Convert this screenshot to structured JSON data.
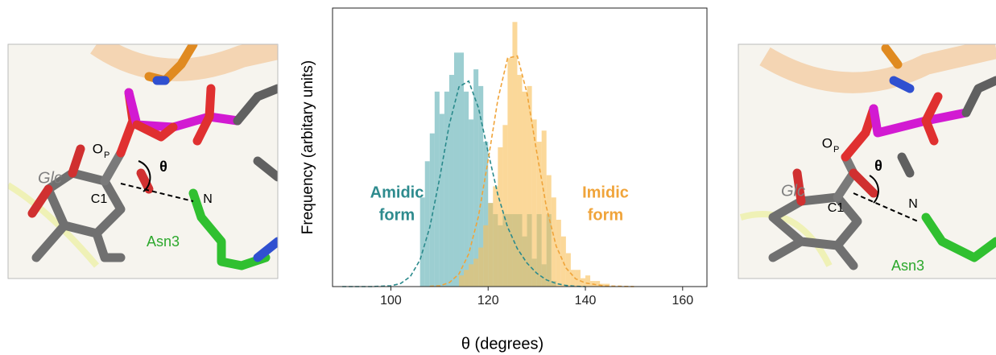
{
  "left_panel": {
    "glc": "Glc",
    "c1": "C1",
    "o": "O",
    "p_sub": "P",
    "theta": "θ",
    "n": "N",
    "residue": "Asn3"
  },
  "right_panel": {
    "glc": "Glc",
    "c1": "C1",
    "o": "O",
    "p_sub": "P",
    "theta": "θ",
    "n": "N",
    "residue": "Asn3"
  },
  "chart_data": {
    "type": "histogram",
    "x_label": "θ (degrees)",
    "y_label": "Frequency (arbitary units)",
    "xlim": [
      88,
      165
    ],
    "xticks": [
      100,
      120,
      140,
      160
    ],
    "ylim": [
      0,
      100
    ],
    "bins": [
      105,
      106,
      107,
      108,
      109,
      110,
      111,
      112,
      113,
      114,
      115,
      116,
      117,
      118,
      119,
      120,
      121,
      122,
      123,
      124,
      125,
      126,
      127,
      128,
      129,
      130,
      131,
      132,
      133,
      134,
      135,
      136,
      137,
      138,
      139,
      140,
      141,
      142,
      143,
      144,
      145,
      146
    ],
    "series": [
      {
        "color": "#5fb0b4",
        "values": [
          0,
          32,
          45,
          55,
          70,
          62,
          70,
          76,
          84,
          84,
          70,
          60,
          78,
          72,
          52,
          30,
          26,
          22,
          26,
          26,
          26,
          26,
          18,
          26,
          10,
          26,
          8,
          26,
          2,
          0,
          0,
          0,
          0,
          0,
          0,
          0,
          0,
          0,
          0,
          0,
          0
        ]
      },
      {
        "color": "#f8c05a",
        "values": [
          0,
          0,
          0,
          0,
          0,
          0,
          0,
          0,
          0,
          4,
          6,
          8,
          10,
          14,
          22,
          30,
          36,
          50,
          58,
          82,
          95,
          76,
          70,
          72,
          60,
          52,
          56,
          40,
          32,
          24,
          18,
          12,
          6,
          6,
          3,
          4,
          2,
          2,
          1,
          1,
          0
        ]
      }
    ],
    "curves": [
      {
        "color": "#2a8a8c",
        "x": [
          90,
          96,
          100,
          102,
          104,
          106,
          108,
          110,
          112,
          114,
          116,
          118,
          120,
          122,
          124,
          126,
          128,
          130,
          132,
          134,
          136,
          138,
          140
        ],
        "values": [
          0,
          0,
          0.3,
          1.1,
          3.6,
          9.6,
          21.3,
          38.7,
          58,
          71.7,
          73.8,
          64.2,
          48.3,
          33,
          21.4,
          13.6,
          8.4,
          4.8,
          2.4,
          1.1,
          0.4,
          0.1,
          0
        ]
      },
      {
        "color": "#f0a43a",
        "x": [
          108,
          110,
          112,
          114,
          116,
          118,
          120,
          122,
          124,
          126,
          128,
          130,
          132,
          134,
          136,
          138,
          140,
          144,
          150
        ],
        "values": [
          0.1,
          0.3,
          1.4,
          4.5,
          11.7,
          25.2,
          45.3,
          67.1,
          82,
          82.8,
          69.3,
          48.3,
          28.4,
          14.5,
          6.7,
          2.8,
          1.3,
          0.2,
          0
        ]
      }
    ],
    "annotations": [
      {
        "lines": [
          "Amidic",
          "form"
        ],
        "color": "#2e8b8e"
      },
      {
        "lines": [
          "Imidic",
          "form"
        ],
        "color": "#f0a43a"
      }
    ]
  }
}
